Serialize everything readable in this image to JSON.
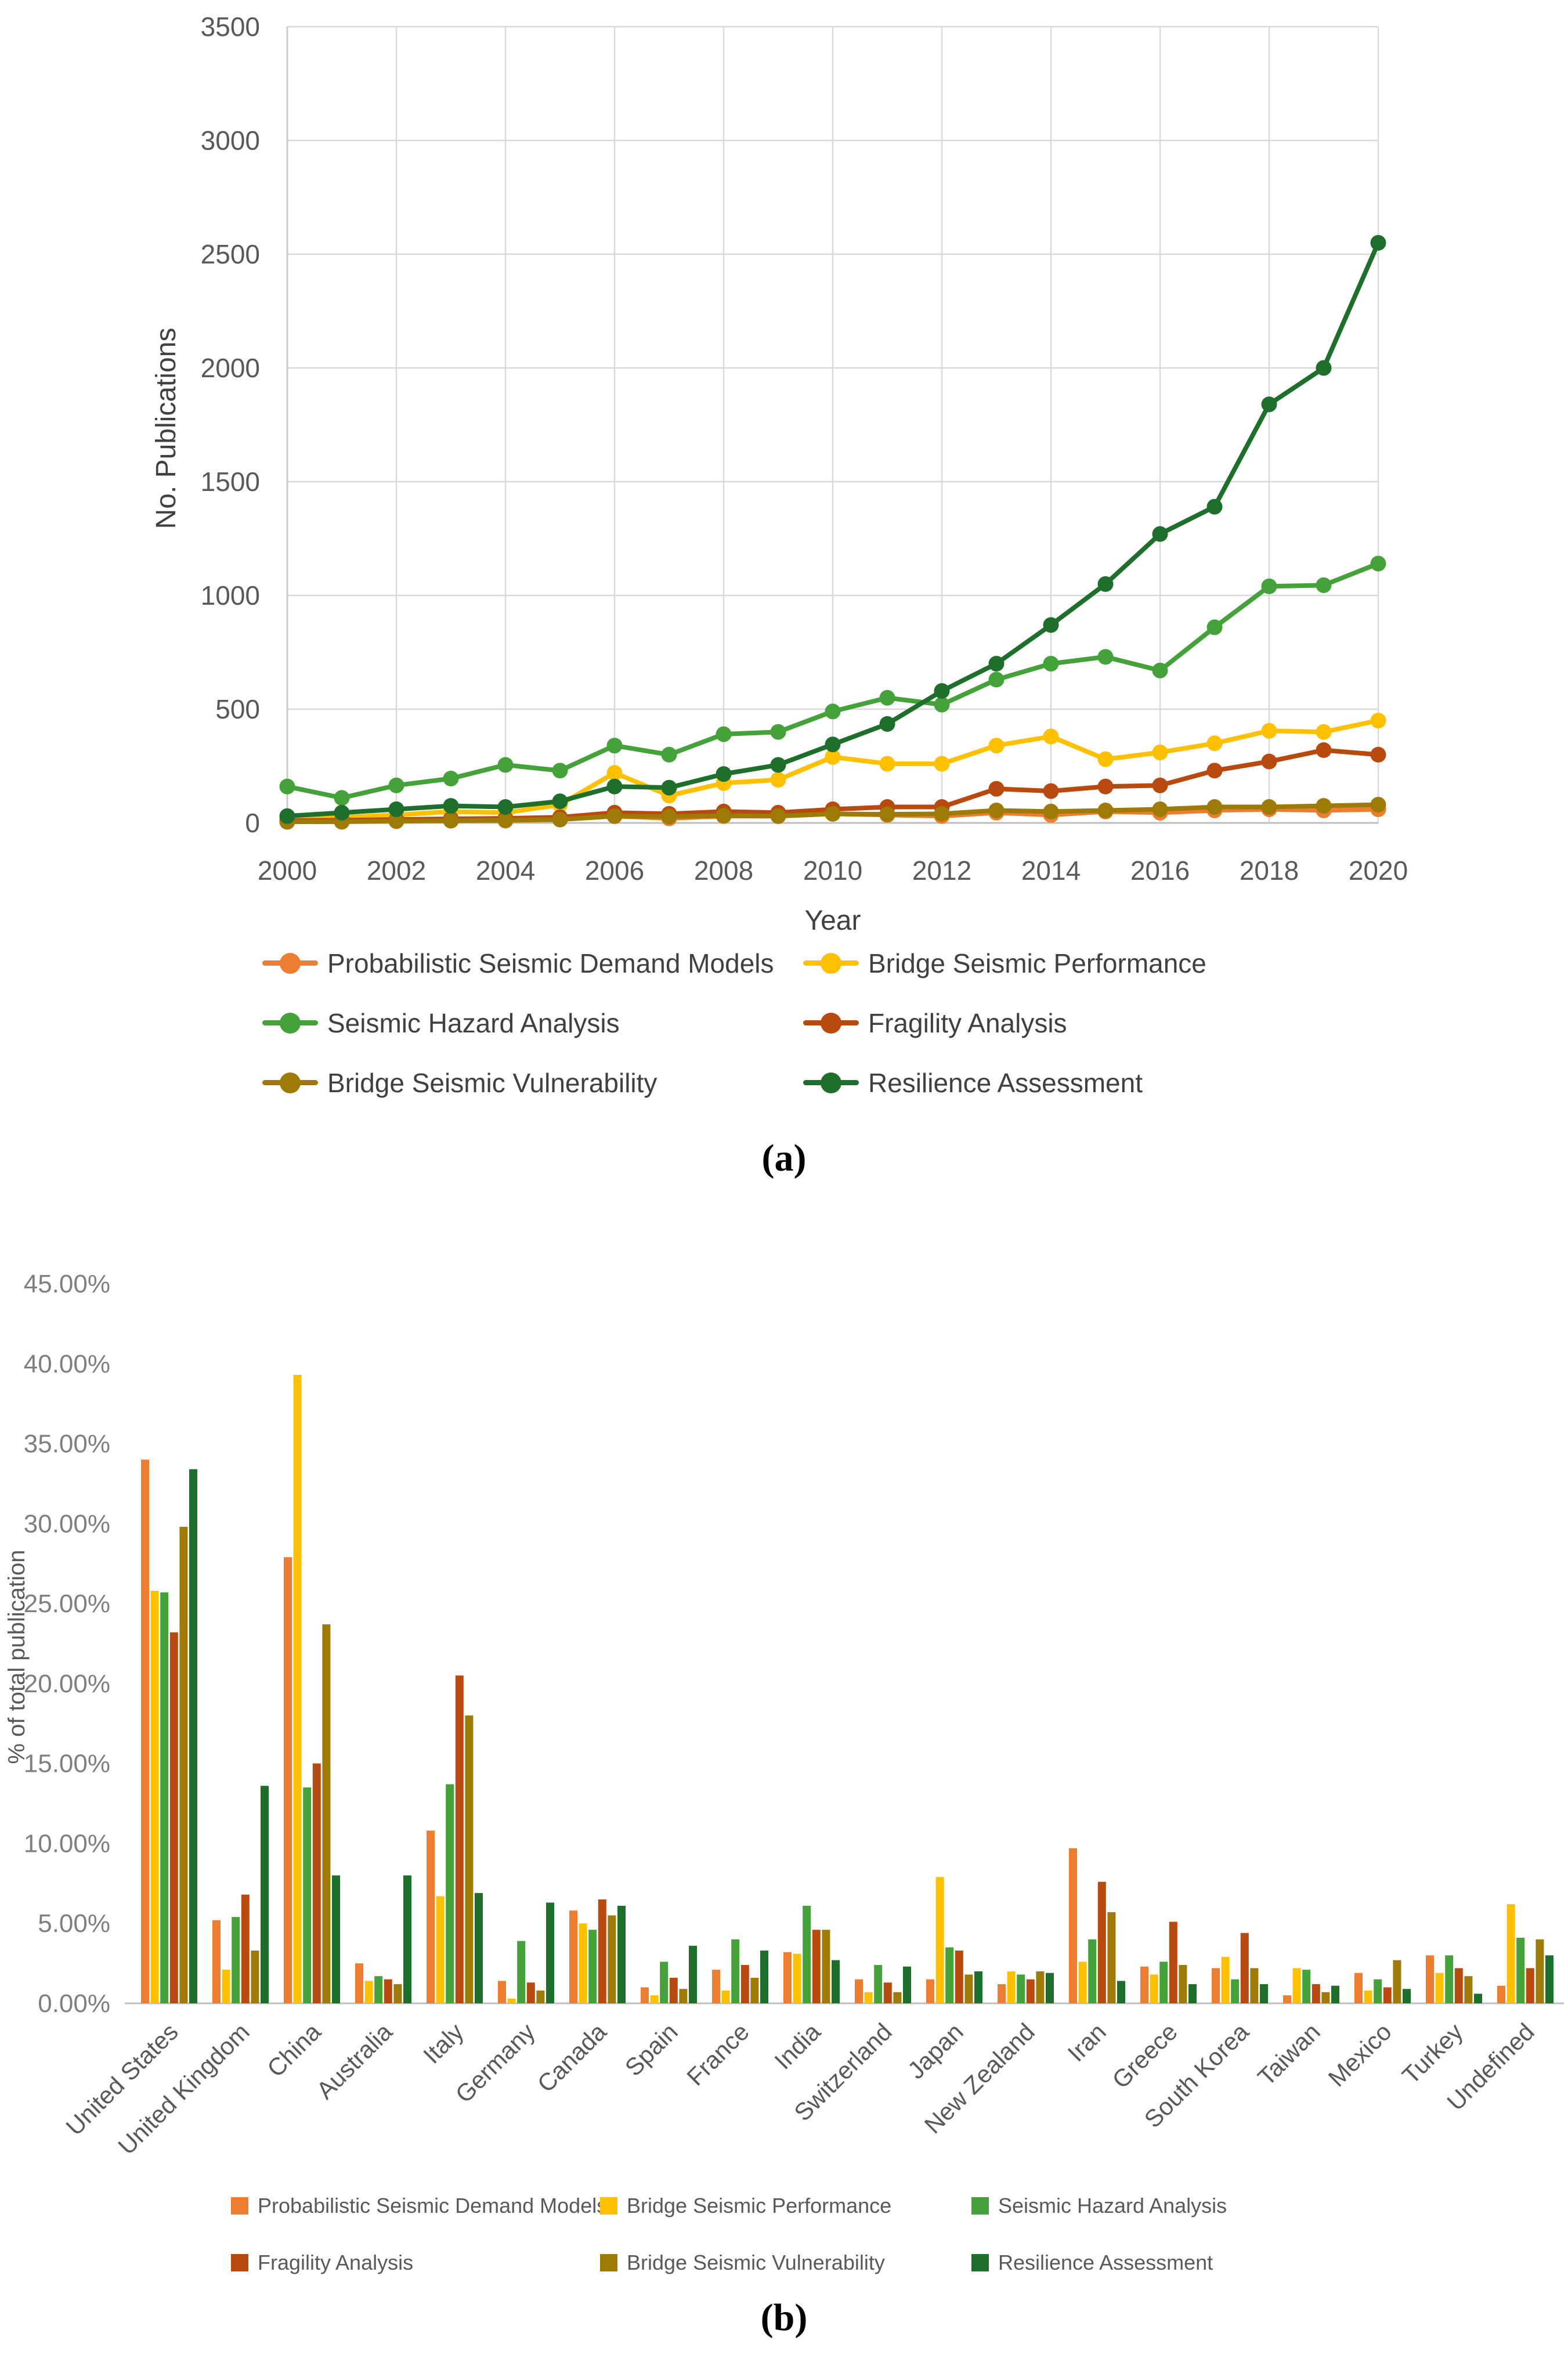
{
  "chart_data": [
    {
      "type": "line",
      "title": "",
      "xlabel": "Year",
      "ylabel": "No. Publications",
      "caption": "(a)",
      "x": [
        2000,
        2001,
        2002,
        2003,
        2004,
        2005,
        2006,
        2007,
        2008,
        2009,
        2010,
        2011,
        2012,
        2013,
        2014,
        2015,
        2016,
        2017,
        2018,
        2019,
        2020
      ],
      "ylim": [
        0,
        3500
      ],
      "ytick_step": 500,
      "xtick_step": 2,
      "grid": true,
      "legend_position": "below",
      "series": [
        {
          "name": "Probabilistic Seismic Demand Models",
          "color": "#ED7D31",
          "values": [
            5,
            5,
            8,
            10,
            10,
            15,
            30,
            20,
            30,
            30,
            40,
            35,
            30,
            45,
            35,
            50,
            45,
            55,
            60,
            55,
            60
          ]
        },
        {
          "name": "Bridge Seismic Performance",
          "color": "#FFC000",
          "values": [
            20,
            25,
            35,
            50,
            45,
            80,
            220,
            120,
            175,
            190,
            290,
            260,
            260,
            340,
            380,
            280,
            310,
            350,
            405,
            400,
            450
          ]
        },
        {
          "name": "Seismic Hazard Analysis",
          "color": "#45A139",
          "values": [
            160,
            110,
            165,
            195,
            255,
            230,
            340,
            300,
            390,
            400,
            490,
            550,
            520,
            630,
            700,
            730,
            670,
            860,
            1040,
            1045,
            1140
          ]
        },
        {
          "name": "Fragility Analysis",
          "color": "#B84A0F",
          "values": [
            10,
            12,
            15,
            18,
            20,
            25,
            45,
            40,
            50,
            45,
            60,
            70,
            70,
            150,
            140,
            160,
            165,
            230,
            270,
            320,
            300
          ]
        },
        {
          "name": "Bridge Seismic Vulnerability",
          "color": "#9E7B06",
          "values": [
            5,
            6,
            8,
            10,
            12,
            15,
            30,
            28,
            32,
            30,
            40,
            38,
            40,
            55,
            50,
            55,
            60,
            70,
            70,
            75,
            80
          ]
        },
        {
          "name": "Resilience Assessment",
          "color": "#1E6F2C",
          "values": [
            30,
            45,
            60,
            75,
            70,
            95,
            160,
            155,
            215,
            255,
            345,
            435,
            580,
            700,
            870,
            1050,
            1270,
            1390,
            1840,
            2000,
            2550
          ]
        }
      ]
    },
    {
      "type": "bar",
      "title": "",
      "xlabel": "",
      "ylabel": "% of total publication",
      "caption": "(b)",
      "categories": [
        "United States",
        "United Kingdom",
        "China",
        "Australia",
        "Italy",
        "Germany",
        "Canada",
        "Spain",
        "France",
        "India",
        "Switzerland",
        "Japan",
        "New Zealand",
        "Iran",
        "Greece",
        "South Korea",
        "Taiwan",
        "Mexico",
        "Turkey",
        "Undefined"
      ],
      "ylim": [
        0,
        45
      ],
      "ytick_step": 5,
      "ytick_format": "0.00%",
      "grid": false,
      "legend_position": "below",
      "series": [
        {
          "name": "Probabilistic Seismic Demand Models",
          "color": "#ED7D31",
          "values": [
            34.0,
            5.2,
            27.9,
            2.5,
            10.8,
            1.4,
            5.8,
            1.0,
            2.1,
            3.2,
            1.5,
            1.5,
            1.2,
            9.7,
            2.3,
            2.2,
            0.5,
            1.9,
            3.0,
            1.1
          ]
        },
        {
          "name": "Bridge Seismic Performance",
          "color": "#FFC000",
          "values": [
            25.8,
            2.1,
            39.3,
            1.4,
            6.7,
            0.3,
            5.0,
            0.5,
            0.8,
            3.1,
            0.7,
            7.9,
            2.0,
            2.6,
            1.8,
            2.9,
            2.2,
            0.8,
            1.9,
            6.2
          ]
        },
        {
          "name": "Seismic Hazard Analysis",
          "color": "#45A139",
          "values": [
            25.7,
            5.4,
            13.5,
            1.7,
            13.7,
            3.9,
            4.6,
            2.6,
            4.0,
            6.1,
            2.4,
            3.5,
            1.8,
            4.0,
            2.6,
            1.5,
            2.1,
            1.5,
            3.0,
            4.1
          ]
        },
        {
          "name": "Fragility Analysis",
          "color": "#B84A0F",
          "values": [
            23.2,
            6.8,
            15.0,
            1.5,
            20.5,
            1.3,
            6.5,
            1.6,
            2.4,
            4.6,
            1.3,
            3.3,
            1.5,
            7.6,
            5.1,
            4.4,
            1.2,
            1.0,
            2.2,
            2.2
          ]
        },
        {
          "name": "Bridge Seismic Vulnerability",
          "color": "#9E7B06",
          "values": [
            29.8,
            3.3,
            23.7,
            1.2,
            18.0,
            0.8,
            5.5,
            0.9,
            1.6,
            4.6,
            0.7,
            1.8,
            2.0,
            5.7,
            2.4,
            2.2,
            0.7,
            2.7,
            1.7,
            4.0
          ]
        },
        {
          "name": "Resilience Assessment",
          "color": "#1E6F2C",
          "values": [
            33.4,
            13.6,
            8.0,
            8.0,
            6.9,
            6.3,
            6.1,
            3.6,
            3.3,
            2.7,
            2.3,
            2.0,
            1.9,
            1.4,
            1.2,
            1.2,
            1.1,
            0.9,
            0.6,
            3.0
          ]
        }
      ]
    }
  ]
}
